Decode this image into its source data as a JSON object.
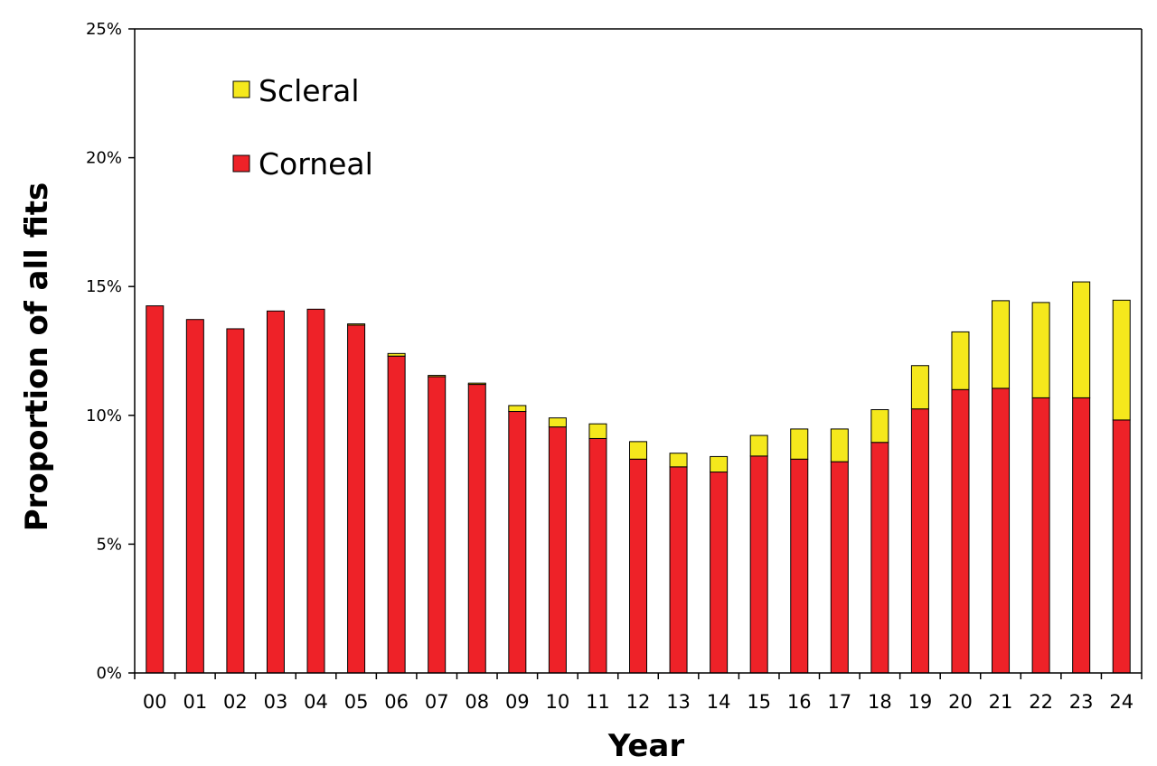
{
  "chart_data": {
    "type": "bar",
    "stacked": true,
    "categories": [
      "00",
      "01",
      "02",
      "03",
      "04",
      "05",
      "06",
      "07",
      "08",
      "09",
      "10",
      "11",
      "12",
      "13",
      "14",
      "15",
      "16",
      "17",
      "18",
      "19",
      "20",
      "21",
      "22",
      "23",
      "24"
    ],
    "series": [
      {
        "name": "Corneal",
        "color": "#ee2228",
        "values": [
          14.25,
          13.72,
          13.36,
          14.05,
          14.12,
          13.5,
          12.3,
          11.5,
          11.2,
          10.15,
          9.55,
          9.1,
          8.3,
          8.0,
          7.8,
          8.42,
          8.3,
          8.2,
          8.95,
          10.25,
          11.0,
          11.05,
          10.68,
          10.68,
          9.82
        ]
      },
      {
        "name": "Scleral",
        "color": "#f5e81c",
        "values": [
          0,
          0,
          0,
          0,
          0,
          0.05,
          0.1,
          0.05,
          0.05,
          0.23,
          0.35,
          0.57,
          0.68,
          0.53,
          0.6,
          0.8,
          1.17,
          1.27,
          1.27,
          1.68,
          2.24,
          3.4,
          3.7,
          4.5,
          4.65
        ]
      }
    ],
    "xlabel": "Year",
    "ylabel": "Proportion of all fits",
    "ylim": [
      0,
      25
    ],
    "yticks": [
      0,
      5,
      10,
      15,
      20,
      25
    ],
    "ytick_labels": [
      "0%",
      "5%",
      "10%",
      "15%",
      "20%",
      "25%"
    ],
    "legend_position": "top-left",
    "grid": false
  }
}
